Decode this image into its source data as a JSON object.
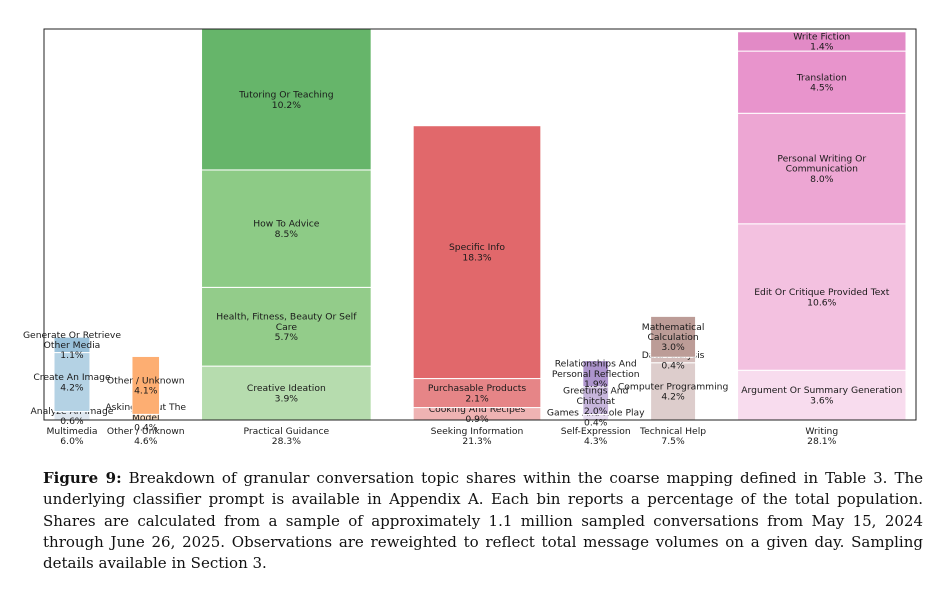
{
  "chart_data": {
    "type": "bar",
    "stacked": true,
    "title": "",
    "xlabel": "",
    "ylabel": "",
    "grid": false,
    "legend": "none",
    "categories": [
      {
        "name": "Multimedia",
        "share": "6.0%",
        "total": 6.0,
        "segments": [
          {
            "label": "Analyze An Image",
            "value_text": "0.6%",
            "value": 0.6,
            "color": "#dde6ef"
          },
          {
            "label": "Create An Image",
            "value_text": "4.2%",
            "value": 4.2,
            "color": "#b4d2e4"
          },
          {
            "label": "Generate Or Retrieve Other Media",
            "value_text": "1.1%",
            "value": 1.1,
            "color": "#99c1da"
          }
        ]
      },
      {
        "name": "Other / Unknown",
        "share": "4.6%",
        "total": 4.6,
        "segments": [
          {
            "label": "Asking About The Model",
            "value_text": "0.4%",
            "value": 0.4,
            "color": "#fde0c4"
          },
          {
            "label": "Other / Unknown",
            "value_text": "4.1%",
            "value": 4.1,
            "color": "#fdae72"
          }
        ]
      },
      {
        "name": "Practical Guidance",
        "share": "28.3%",
        "total": 28.3,
        "segments": [
          {
            "label": "Creative Ideation",
            "value_text": "3.9%",
            "value": 3.9,
            "color": "#b6dcae"
          },
          {
            "label": "Health, Fitness, Beauty Or Self Care",
            "value_text": "5.7%",
            "value": 5.7,
            "color": "#93cc8a"
          },
          {
            "label": "How To Advice",
            "value_text": "8.5%",
            "value": 8.5,
            "color": "#8dcb86"
          },
          {
            "label": "Tutoring Or Teaching",
            "value_text": "10.2%",
            "value": 10.2,
            "color": "#66b56a"
          }
        ]
      },
      {
        "name": "Seeking Information",
        "share": "21.3%",
        "total": 21.3,
        "segments": [
          {
            "label": "Cooking And Recipes",
            "value_text": "0.9%",
            "value": 0.9,
            "color": "#efb3b3"
          },
          {
            "label": "Purchasable Products",
            "value_text": "2.1%",
            "value": 2.1,
            "color": "#e68587"
          },
          {
            "label": "Specific Info",
            "value_text": "18.3%",
            "value": 18.3,
            "color": "#e1686b"
          }
        ]
      },
      {
        "name": "Self-Expression",
        "share": "4.3%",
        "total": 4.3,
        "segments": [
          {
            "label": "Games And Role Play",
            "value_text": "0.4%",
            "value": 0.4,
            "color": "#e6dcef"
          },
          {
            "label": "Greetings And Chitchat",
            "value_text": "2.0%",
            "value": 2.0,
            "color": "#c7b6dc"
          },
          {
            "label": "Relationships And Personal Reflection",
            "value_text": "1.9%",
            "value": 1.9,
            "color": "#ad94cd"
          }
        ]
      },
      {
        "name": "Technical Help",
        "share": "7.5%",
        "total": 7.5,
        "segments": [
          {
            "label": "Computer Programming",
            "value_text": "4.2%",
            "value": 4.2,
            "color": "#ddcdcc"
          },
          {
            "label": "Data Analysis",
            "value_text": "0.4%",
            "value": 0.4,
            "color": "#d3bcba"
          },
          {
            "label": "Mathematical Calculation",
            "value_text": "3.0%",
            "value": 3.0,
            "color": "#bc9c97"
          }
        ]
      },
      {
        "name": "Writing",
        "share": "28.1%",
        "total": 28.1,
        "segments": [
          {
            "label": "Argument Or Summary Generation",
            "value_text": "3.6%",
            "value": 3.6,
            "color": "#f8dcee"
          },
          {
            "label": "Edit Or Critique Provided Text",
            "value_text": "10.6%",
            "value": 10.6,
            "color": "#f3c1e0"
          },
          {
            "label": "Personal Writing Or Communication",
            "value_text": "8.0%",
            "value": 8.0,
            "color": "#eda6d3"
          },
          {
            "label": "Translation",
            "value_text": "4.5%",
            "value": 4.5,
            "color": "#e894cc"
          },
          {
            "label": "Write Fiction",
            "value_text": "1.4%",
            "value": 1.4,
            "color": "#e28ac6"
          }
        ]
      }
    ]
  },
  "caption": {
    "label": "Figure 9:",
    "text": " Breakdown of granular conversation topic shares within the coarse mapping defined in Table 3. The underlying classifier prompt is available in Appendix A. Each bin reports a percentage of the total population. Shares are calculated from a sample of approximately 1.1 million sampled conversations from May 15, 2024 through June 26, 2025. Observations are reweighted to reflect total message volumes on a given day. Sampling details available in Section 3."
  }
}
